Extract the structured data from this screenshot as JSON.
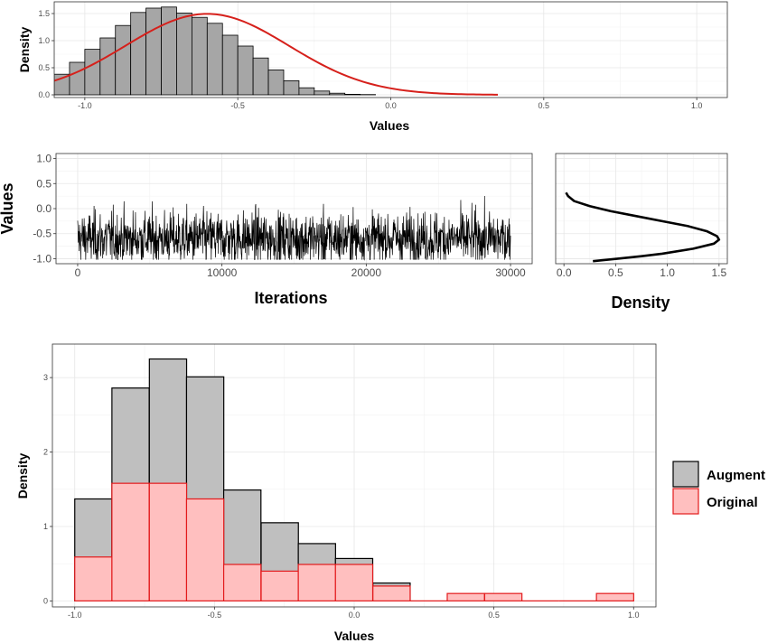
{
  "chart_data": [
    {
      "id": "posterior-histogram",
      "type": "bar",
      "bins_x0": [
        -1.15,
        -1.1,
        -1.05,
        -1.0,
        -0.95,
        -0.9,
        -0.85,
        -0.8,
        -0.75,
        -0.7,
        -0.65,
        -0.6,
        -0.55,
        -0.5,
        -0.45,
        -0.4,
        -0.35,
        -0.3,
        -0.25,
        -0.2,
        -0.15,
        -0.1,
        -0.05,
        0.0,
        0.05,
        0.1
      ],
      "bin_width": 0.05,
      "values": [
        0.24,
        0.38,
        0.6,
        0.84,
        1.05,
        1.28,
        1.52,
        1.6,
        1.62,
        1.51,
        1.43,
        1.32,
        1.1,
        0.9,
        0.68,
        0.46,
        0.26,
        0.13,
        0.07,
        0.03,
        0.01,
        0.005,
        0.0,
        0.0,
        0.0,
        0.0
      ],
      "density_curve": {
        "mean": -0.6,
        "sd": 0.267,
        "x_end": 0.35
      },
      "bar_fill": "#a6a6a6",
      "curve_color": "#d6201b",
      "xlabel": "Values",
      "ylabel": "Density",
      "xlim": [
        -1.1,
        1.1
      ],
      "ylim": [
        0,
        1.65
      ],
      "xticks": [
        -1.0,
        -0.5,
        0.0,
        0.5,
        1.0
      ],
      "xtick_labels": [
        "-1.0",
        "-0.5",
        "0.0",
        "0.5",
        "1.0"
      ],
      "yticks": [
        0,
        0.5,
        1.0,
        1.5
      ],
      "ytick_labels": [
        "0.0",
        "0.5",
        "1.0",
        "1.5"
      ],
      "grid": true
    },
    {
      "id": "trace-plot",
      "type": "line",
      "x_range": [
        0,
        30000
      ],
      "y_center": -0.6,
      "y_band": [
        -1.02,
        0.3
      ],
      "xlabel": "Iterations",
      "ylabel": "Values",
      "xlim": [
        -1500,
        31500
      ],
      "ylim": [
        -1.1,
        1.1
      ],
      "xticks": [
        0,
        10000,
        20000,
        30000
      ],
      "xtick_labels": [
        "0",
        "10000",
        "20000",
        "30000"
      ],
      "yticks": [
        -1.0,
        -0.5,
        0.0,
        0.5,
        1.0
      ],
      "ytick_labels": [
        "-1.0",
        "-0.5",
        "0.0",
        "0.5",
        "1.0"
      ],
      "grid": true
    },
    {
      "id": "trace-density",
      "type": "line",
      "y": [
        0.32,
        0.25,
        0.15,
        0.05,
        -0.05,
        -0.15,
        -0.25,
        -0.35,
        -0.45,
        -0.55,
        -0.62,
        -0.7,
        -0.8,
        -0.9,
        -0.95,
        -1.0,
        -1.05
      ],
      "x": [
        0.02,
        0.04,
        0.1,
        0.25,
        0.45,
        0.7,
        0.95,
        1.2,
        1.38,
        1.48,
        1.5,
        1.45,
        1.25,
        0.95,
        0.75,
        0.52,
        0.28
      ],
      "xlabel": "Density",
      "ylabel": "",
      "xlim": [
        -0.08,
        1.58
      ],
      "ylim": [
        -1.1,
        1.1
      ],
      "xticks": [
        0.0,
        0.5,
        1.0,
        1.5
      ],
      "xtick_labels": [
        "0.0",
        "0.5",
        "1.0",
        "1.5"
      ],
      "grid": true
    },
    {
      "id": "augment-vs-original",
      "type": "bar",
      "bins_x0": [
        -1.0,
        -0.867,
        -0.733,
        -0.6,
        -0.467,
        -0.333,
        -0.2,
        -0.067,
        0.067,
        0.2,
        0.333,
        0.467,
        0.6,
        0.733,
        0.867
      ],
      "bin_width": 0.1333,
      "series": [
        {
          "name": "Augment",
          "values": [
            1.37,
            2.86,
            3.25,
            3.01,
            1.49,
            1.05,
            0.77,
            0.57,
            0.24,
            0,
            0,
            0,
            0,
            0,
            0
          ],
          "fill": "#bfbfbf",
          "stroke": "#000000"
        },
        {
          "name": "Original",
          "values": [
            0.59,
            1.58,
            1.58,
            1.37,
            0.49,
            0.4,
            0.49,
            0.49,
            0.2,
            0,
            0.1,
            0.1,
            0,
            0,
            0.1
          ],
          "fill": "#ffbfbf",
          "stroke": "#e31a1c"
        }
      ],
      "xlabel": "Values",
      "ylabel": "Density",
      "xlim": [
        -1.08,
        1.08
      ],
      "ylim": [
        -0.08,
        3.45
      ],
      "xticks": [
        -1.0,
        -0.5,
        0.0,
        0.5,
        1.0
      ],
      "xtick_labels": [
        "-1.0",
        "-0.5",
        "0.0",
        "0.5",
        "1.0"
      ],
      "yticks": [
        0,
        1,
        2,
        3
      ],
      "ytick_labels": [
        "0",
        "1",
        "2",
        "3"
      ],
      "legend": "right",
      "grid": true
    }
  ]
}
